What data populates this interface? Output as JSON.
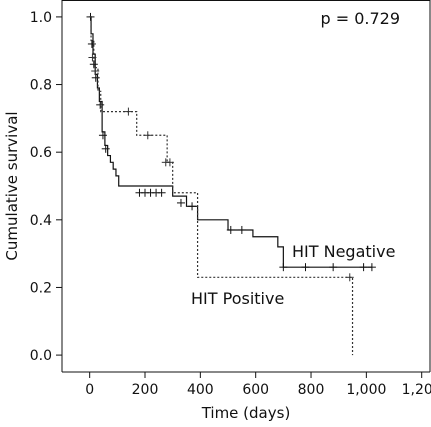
{
  "chart_data": {
    "type": "line",
    "xlabel": "Time (days)",
    "ylabel": "Cumulative survival",
    "xlim": [
      -100,
      1230
    ],
    "ylim": [
      -0.05,
      1.05
    ],
    "x_ticks": [
      {
        "value": 0,
        "label": "0"
      },
      {
        "value": 200,
        "label": "200"
      },
      {
        "value": 400,
        "label": "400"
      },
      {
        "value": 600,
        "label": "600"
      },
      {
        "value": 800,
        "label": "800"
      },
      {
        "value": 1000,
        "label": "1,000"
      },
      {
        "value": 1200,
        "label": "1,200"
      }
    ],
    "y_ticks": [
      {
        "value": 0.0,
        "label": "0.0"
      },
      {
        "value": 0.2,
        "label": "0.2"
      },
      {
        "value": 0.4,
        "label": "0.4"
      },
      {
        "value": 0.6,
        "label": "0.6"
      },
      {
        "value": 0.8,
        "label": "0.8"
      },
      {
        "value": 1.0,
        "label": "1.0"
      }
    ],
    "grid": false,
    "legend": "none",
    "annotation": "p = 0.729",
    "series": [
      {
        "name": "HIT Negative",
        "style": "solid",
        "color": "#111111",
        "steps": [
          [
            0,
            1.0
          ],
          [
            5,
            0.95
          ],
          [
            12,
            0.89
          ],
          [
            20,
            0.83
          ],
          [
            28,
            0.79
          ],
          [
            35,
            0.75
          ],
          [
            45,
            0.66
          ],
          [
            55,
            0.62
          ],
          [
            65,
            0.59
          ],
          [
            75,
            0.57
          ],
          [
            85,
            0.55
          ],
          [
            95,
            0.53
          ],
          [
            105,
            0.5
          ],
          [
            300,
            0.47
          ],
          [
            350,
            0.44
          ],
          [
            390,
            0.4
          ],
          [
            500,
            0.37
          ],
          [
            590,
            0.35
          ],
          [
            680,
            0.32
          ],
          [
            700,
            0.26
          ],
          [
            1020,
            0.26
          ]
        ],
        "censored": [
          [
            3,
            1.0
          ],
          [
            8,
            0.92
          ],
          [
            15,
            0.86
          ],
          [
            22,
            0.82
          ],
          [
            38,
            0.74
          ],
          [
            48,
            0.65
          ],
          [
            58,
            0.61
          ],
          [
            180,
            0.48
          ],
          [
            200,
            0.48
          ],
          [
            220,
            0.48
          ],
          [
            240,
            0.48
          ],
          [
            260,
            0.48
          ],
          [
            330,
            0.45
          ],
          [
            370,
            0.44
          ],
          [
            510,
            0.37
          ],
          [
            550,
            0.37
          ],
          [
            700,
            0.26
          ],
          [
            780,
            0.26
          ],
          [
            880,
            0.26
          ],
          [
            990,
            0.26
          ],
          [
            1020,
            0.26
          ]
        ],
        "label": "HIT Negative"
      },
      {
        "name": "HIT Positive",
        "style": "dotted",
        "color": "#333333",
        "steps": [
          [
            0,
            1.0
          ],
          [
            5,
            0.93
          ],
          [
            15,
            0.85
          ],
          [
            30,
            0.78
          ],
          [
            40,
            0.72
          ],
          [
            170,
            0.65
          ],
          [
            280,
            0.57
          ],
          [
            300,
            0.48
          ],
          [
            390,
            0.23
          ],
          [
            950,
            0.23
          ],
          [
            950,
            0.0
          ]
        ],
        "censored": [
          [
            10,
            0.88
          ],
          [
            20,
            0.84
          ],
          [
            140,
            0.72
          ],
          [
            210,
            0.65
          ],
          [
            275,
            0.57
          ],
          [
            290,
            0.57
          ],
          [
            940,
            0.23
          ]
        ],
        "label": "HIT Positive"
      }
    ]
  }
}
